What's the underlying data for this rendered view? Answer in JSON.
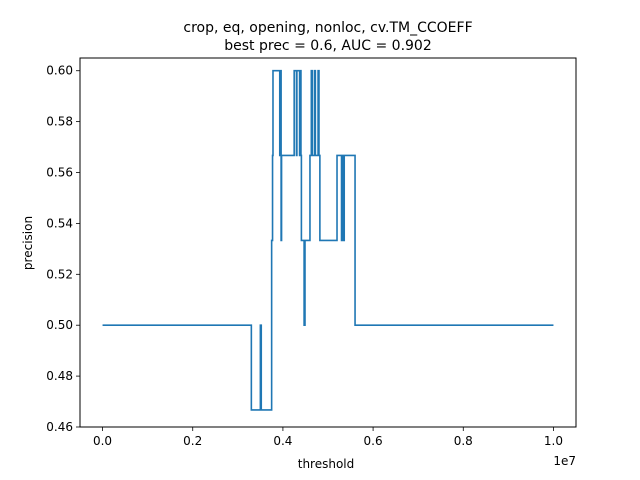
{
  "chart_data": {
    "type": "line",
    "title_line1": "crop, eq, opening, nonloc, cv.TM_CCOEFF",
    "title_line2": "best prec = 0.6, AUC = 0.902",
    "xlabel": "threshold",
    "ylabel": "precision",
    "x_offset_text": "1e7",
    "xlim": [
      -500000,
      10500000
    ],
    "ylim": [
      0.46,
      0.605
    ],
    "x_ticks": [
      0,
      2000000,
      4000000,
      6000000,
      8000000,
      10000000
    ],
    "x_tick_labels": [
      "0.0",
      "0.2",
      "0.4",
      "0.6",
      "0.8",
      "1.0"
    ],
    "y_ticks": [
      0.46,
      0.48,
      0.5,
      0.52,
      0.54,
      0.56,
      0.58,
      0.6
    ],
    "y_tick_labels": [
      "0.46",
      "0.48",
      "0.50",
      "0.52",
      "0.54",
      "0.56",
      "0.58",
      "0.60"
    ],
    "grid": false,
    "line_color": "#1f77b4",
    "series": [
      {
        "x": [
          0,
          3300000,
          3300000,
          3500000,
          3500000,
          3520000,
          3520000,
          3750000,
          3750000,
          3770000,
          3770000,
          3780000,
          3780000,
          3930000,
          3930000,
          3940000,
          3940000,
          3960000,
          3960000,
          3970000,
          3970000,
          4250000,
          4250000,
          4300000,
          4300000,
          4310000,
          4310000,
          4370000,
          4370000,
          4380000,
          4380000,
          4400000,
          4400000,
          4410000,
          4410000,
          4470000,
          4470000,
          4490000,
          4490000,
          4600000,
          4600000,
          4630000,
          4630000,
          4650000,
          4650000,
          4700000,
          4700000,
          4720000,
          4720000,
          4780000,
          4780000,
          4800000,
          4800000,
          4820000,
          4820000,
          5200000,
          5200000,
          5300000,
          5300000,
          5320000,
          5320000,
          5340000,
          5340000,
          5360000,
          5360000,
          5600000,
          5600000,
          10000000
        ],
        "y": [
          0.5,
          0.5,
          0.4667,
          0.4667,
          0.5,
          0.5,
          0.4667,
          0.4667,
          0.5333,
          0.5333,
          0.5667,
          0.5667,
          0.6,
          0.6,
          0.5667,
          0.5667,
          0.6,
          0.6,
          0.5333,
          0.5333,
          0.5667,
          0.5667,
          0.6,
          0.6,
          0.5667,
          0.5667,
          0.6,
          0.6,
          0.5667,
          0.5667,
          0.6,
          0.6,
          0.5667,
          0.5667,
          0.5333,
          0.5333,
          0.5,
          0.5,
          0.5333,
          0.5333,
          0.5667,
          0.5667,
          0.6,
          0.6,
          0.5667,
          0.5667,
          0.6,
          0.6,
          0.5667,
          0.5667,
          0.6,
          0.6,
          0.5667,
          0.5667,
          0.5333,
          0.5333,
          0.5667,
          0.5667,
          0.5333,
          0.5333,
          0.5667,
          0.5667,
          0.5333,
          0.5333,
          0.5667,
          0.5667,
          0.5,
          0.5
        ]
      }
    ]
  }
}
